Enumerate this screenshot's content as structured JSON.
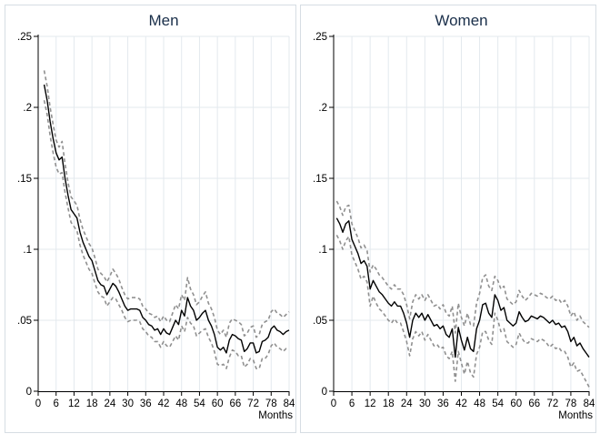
{
  "colors": {
    "background": "#ffffff",
    "panel_border": "#d6dde3",
    "grid": "#e3e9ee",
    "axis": "#000000",
    "estimate": "#000000",
    "confidence_band": "#909090",
    "title": "#1a2f4a"
  },
  "chart_data": [
    {
      "type": "line",
      "title": "Men",
      "xlabel": "Months",
      "ylabel": "",
      "xlim": [
        0,
        84
      ],
      "ylim": [
        0,
        0.25
      ],
      "xticks": [
        0,
        6,
        12,
        18,
        24,
        30,
        36,
        42,
        48,
        54,
        60,
        66,
        72,
        78,
        84
      ],
      "yticks": [
        0,
        0.05,
        0.1,
        0.15,
        0.2,
        0.25
      ],
      "yticklabels": [
        "0",
        ".05",
        ".1",
        ".15",
        ".2",
        ".25"
      ],
      "grid": true,
      "x": [
        2,
        3,
        4,
        5,
        6,
        7,
        8,
        9,
        10,
        11,
        12,
        13,
        14,
        15,
        16,
        17,
        18,
        19,
        20,
        21,
        22,
        23,
        24,
        25,
        26,
        27,
        28,
        29,
        30,
        31,
        32,
        33,
        34,
        35,
        36,
        37,
        38,
        39,
        40,
        41,
        42,
        43,
        44,
        45,
        46,
        47,
        48,
        49,
        50,
        51,
        52,
        53,
        54,
        55,
        56,
        57,
        58,
        59,
        60,
        61,
        62,
        63,
        64,
        65,
        66,
        67,
        68,
        69,
        70,
        71,
        72,
        73,
        74,
        75,
        76,
        77,
        78,
        79,
        80,
        81,
        82,
        83,
        84
      ],
      "series": [
        {
          "role": "estimate",
          "style": "solid",
          "values": [
            0.216,
            0.205,
            0.19,
            0.178,
            0.168,
            0.163,
            0.165,
            0.15,
            0.138,
            0.128,
            0.125,
            0.122,
            0.112,
            0.105,
            0.1,
            0.095,
            0.092,
            0.085,
            0.078,
            0.075,
            0.074,
            0.068,
            0.072,
            0.076,
            0.074,
            0.07,
            0.065,
            0.06,
            0.057,
            0.058,
            0.058,
            0.058,
            0.057,
            0.052,
            0.05,
            0.047,
            0.046,
            0.043,
            0.044,
            0.04,
            0.044,
            0.041,
            0.04,
            0.045,
            0.05,
            0.047,
            0.057,
            0.053,
            0.066,
            0.06,
            0.057,
            0.05,
            0.052,
            0.055,
            0.057,
            0.05,
            0.046,
            0.04,
            0.031,
            0.029,
            0.031,
            0.027,
            0.036,
            0.04,
            0.039,
            0.037,
            0.036,
            0.028,
            0.03,
            0.034,
            0.034,
            0.027,
            0.028,
            0.035,
            0.036,
            0.038,
            0.044,
            0.046,
            0.043,
            0.042,
            0.04,
            0.042,
            0.043
          ]
        },
        {
          "role": "upper-ci",
          "style": "dashed",
          "values": [
            0.226,
            0.215,
            0.2,
            0.188,
            0.177,
            0.172,
            0.176,
            0.16,
            0.147,
            0.137,
            0.134,
            0.131,
            0.121,
            0.114,
            0.109,
            0.104,
            0.101,
            0.094,
            0.086,
            0.083,
            0.081,
            0.077,
            0.081,
            0.086,
            0.083,
            0.079,
            0.073,
            0.068,
            0.065,
            0.066,
            0.066,
            0.066,
            0.065,
            0.06,
            0.058,
            0.055,
            0.054,
            0.052,
            0.053,
            0.049,
            0.053,
            0.05,
            0.049,
            0.055,
            0.061,
            0.058,
            0.068,
            0.064,
            0.08,
            0.072,
            0.068,
            0.061,
            0.063,
            0.067,
            0.07,
            0.062,
            0.058,
            0.052,
            0.043,
            0.04,
            0.043,
            0.038,
            0.048,
            0.051,
            0.05,
            0.049,
            0.047,
            0.039,
            0.041,
            0.045,
            0.046,
            0.038,
            0.04,
            0.047,
            0.049,
            0.05,
            0.056,
            0.058,
            0.055,
            0.054,
            0.052,
            0.054,
            0.056
          ]
        },
        {
          "role": "lower-ci",
          "style": "dashed",
          "values": [
            0.205,
            0.195,
            0.18,
            0.168,
            0.158,
            0.153,
            0.154,
            0.14,
            0.129,
            0.119,
            0.116,
            0.113,
            0.103,
            0.096,
            0.091,
            0.086,
            0.083,
            0.076,
            0.07,
            0.067,
            0.066,
            0.06,
            0.063,
            0.066,
            0.065,
            0.061,
            0.057,
            0.052,
            0.049,
            0.05,
            0.05,
            0.05,
            0.049,
            0.044,
            0.042,
            0.039,
            0.038,
            0.035,
            0.035,
            0.031,
            0.035,
            0.032,
            0.031,
            0.035,
            0.039,
            0.036,
            0.046,
            0.042,
            0.052,
            0.048,
            0.046,
            0.039,
            0.041,
            0.043,
            0.044,
            0.038,
            0.034,
            0.028,
            0.019,
            0.018,
            0.019,
            0.016,
            0.024,
            0.029,
            0.028,
            0.025,
            0.025,
            0.017,
            0.019,
            0.023,
            0.022,
            0.016,
            0.016,
            0.023,
            0.023,
            0.026,
            0.032,
            0.034,
            0.031,
            0.03,
            0.028,
            0.03,
            0.03
          ]
        }
      ]
    },
    {
      "type": "line",
      "title": "Women",
      "xlabel": "Months",
      "ylabel": "",
      "xlim": [
        0,
        84
      ],
      "ylim": [
        0,
        0.25
      ],
      "xticks": [
        0,
        6,
        12,
        18,
        24,
        30,
        36,
        42,
        48,
        54,
        60,
        66,
        72,
        78,
        84
      ],
      "yticks": [
        0,
        0.05,
        0.1,
        0.15,
        0.2,
        0.25
      ],
      "yticklabels": [
        "0",
        ".05",
        ".1",
        ".15",
        ".2",
        ".25"
      ],
      "grid": true,
      "x": [
        1,
        2,
        3,
        4,
        5,
        6,
        7,
        8,
        9,
        10,
        11,
        12,
        13,
        14,
        15,
        16,
        17,
        18,
        19,
        20,
        21,
        22,
        23,
        24,
        25,
        26,
        27,
        28,
        29,
        30,
        31,
        32,
        33,
        34,
        35,
        36,
        37,
        38,
        39,
        40,
        41,
        42,
        43,
        44,
        45,
        46,
        47,
        48,
        49,
        50,
        51,
        52,
        53,
        54,
        55,
        56,
        57,
        58,
        59,
        60,
        61,
        62,
        63,
        64,
        65,
        66,
        67,
        68,
        69,
        70,
        71,
        72,
        73,
        74,
        75,
        76,
        77,
        78,
        79,
        80,
        81,
        82,
        83,
        84
      ],
      "series": [
        {
          "role": "estimate",
          "style": "solid",
          "values": [
            0.122,
            0.118,
            0.112,
            0.118,
            0.12,
            0.107,
            0.102,
            0.097,
            0.09,
            0.092,
            0.088,
            0.072,
            0.078,
            0.074,
            0.07,
            0.068,
            0.065,
            0.062,
            0.06,
            0.063,
            0.06,
            0.06,
            0.055,
            0.048,
            0.038,
            0.05,
            0.055,
            0.052,
            0.055,
            0.05,
            0.054,
            0.05,
            0.046,
            0.047,
            0.044,
            0.046,
            0.04,
            0.038,
            0.044,
            0.024,
            0.045,
            0.036,
            0.029,
            0.038,
            0.03,
            0.028,
            0.044,
            0.05,
            0.061,
            0.062,
            0.055,
            0.052,
            0.068,
            0.064,
            0.057,
            0.059,
            0.05,
            0.048,
            0.046,
            0.048,
            0.056,
            0.052,
            0.049,
            0.05,
            0.053,
            0.052,
            0.051,
            0.053,
            0.052,
            0.05,
            0.048,
            0.05,
            0.047,
            0.048,
            0.045,
            0.046,
            0.042,
            0.035,
            0.038,
            0.032,
            0.034,
            0.03,
            0.027,
            0.024
          ]
        },
        {
          "role": "upper-ci",
          "style": "dashed",
          "values": [
            0.134,
            0.13,
            0.124,
            0.13,
            0.131,
            0.118,
            0.113,
            0.108,
            0.101,
            0.103,
            0.099,
            0.084,
            0.089,
            0.086,
            0.082,
            0.08,
            0.077,
            0.074,
            0.072,
            0.075,
            0.072,
            0.072,
            0.068,
            0.061,
            0.051,
            0.063,
            0.068,
            0.065,
            0.068,
            0.064,
            0.068,
            0.064,
            0.06,
            0.061,
            0.058,
            0.061,
            0.055,
            0.053,
            0.06,
            0.041,
            0.062,
            0.052,
            0.046,
            0.055,
            0.047,
            0.046,
            0.062,
            0.069,
            0.08,
            0.082,
            0.074,
            0.071,
            0.081,
            0.078,
            0.072,
            0.074,
            0.065,
            0.063,
            0.061,
            0.063,
            0.071,
            0.067,
            0.064,
            0.066,
            0.069,
            0.068,
            0.067,
            0.069,
            0.068,
            0.066,
            0.065,
            0.067,
            0.064,
            0.065,
            0.062,
            0.064,
            0.06,
            0.053,
            0.056,
            0.05,
            0.053,
            0.049,
            0.047,
            0.045
          ]
        },
        {
          "role": "lower-ci",
          "style": "dashed",
          "values": [
            0.11,
            0.106,
            0.1,
            0.106,
            0.109,
            0.096,
            0.091,
            0.086,
            0.079,
            0.081,
            0.077,
            0.06,
            0.067,
            0.062,
            0.058,
            0.056,
            0.053,
            0.05,
            0.048,
            0.051,
            0.048,
            0.048,
            0.042,
            0.035,
            0.025,
            0.037,
            0.042,
            0.039,
            0.042,
            0.036,
            0.04,
            0.036,
            0.032,
            0.033,
            0.03,
            0.031,
            0.025,
            0.023,
            0.028,
            0.007,
            0.028,
            0.02,
            0.012,
            0.021,
            0.013,
            0.01,
            0.026,
            0.031,
            0.042,
            0.042,
            0.036,
            0.033,
            0.055,
            0.05,
            0.042,
            0.044,
            0.035,
            0.033,
            0.031,
            0.033,
            0.041,
            0.037,
            0.034,
            0.034,
            0.037,
            0.036,
            0.035,
            0.037,
            0.036,
            0.034,
            0.031,
            0.033,
            0.03,
            0.031,
            0.028,
            0.028,
            0.024,
            0.017,
            0.02,
            0.014,
            0.015,
            0.011,
            0.007,
            0.003
          ]
        }
      ]
    }
  ]
}
